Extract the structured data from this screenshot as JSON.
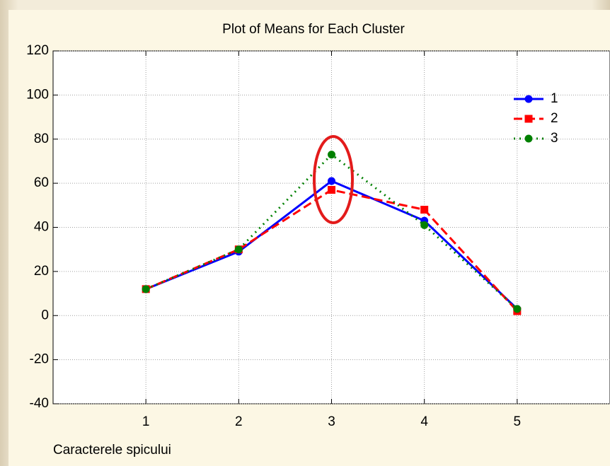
{
  "chart_data": {
    "type": "line",
    "title": "Plot of Means for Each Cluster",
    "x_label": "Caracterele  spicului",
    "x": [
      1,
      2,
      3,
      4,
      5
    ],
    "xlim": [
      0,
      6
    ],
    "xticks": [
      1,
      2,
      3,
      4,
      5
    ],
    "ylim": [
      -40,
      120
    ],
    "yticks": [
      -40,
      -20,
      0,
      20,
      40,
      60,
      80,
      100,
      120
    ],
    "grid": true,
    "legend": "upper right",
    "series": [
      {
        "name": "1",
        "color": "#0000ff",
        "line": "solid",
        "marker": "circle",
        "values": [
          12,
          29,
          61,
          43,
          3
        ]
      },
      {
        "name": "2",
        "color": "#ff0000",
        "line": "dashed",
        "marker": "square",
        "values": [
          12,
          30,
          57,
          48,
          2
        ]
      },
      {
        "name": "3",
        "color": "#008000",
        "line": "dotted",
        "marker": "circle",
        "values": [
          12,
          30,
          73,
          41,
          3
        ]
      }
    ]
  }
}
